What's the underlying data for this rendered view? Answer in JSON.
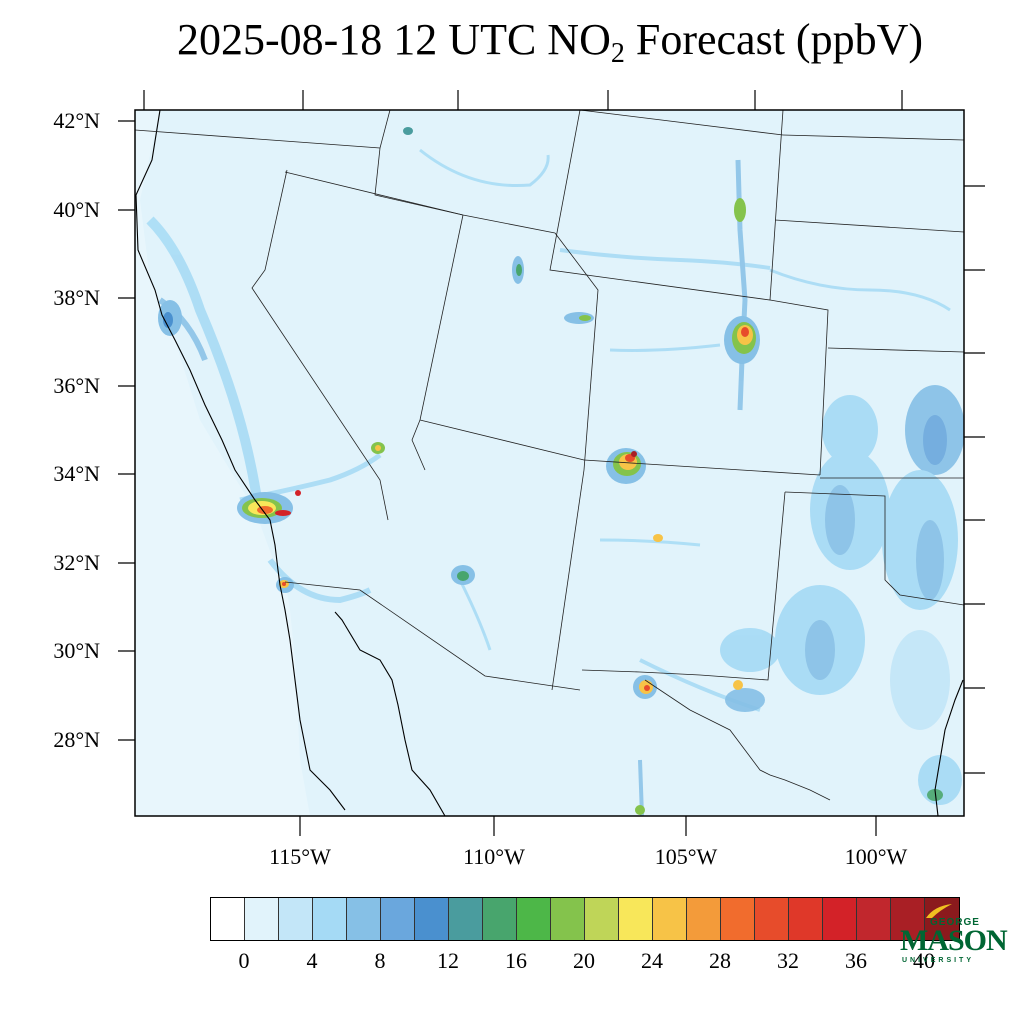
{
  "title": {
    "date_time": "2025-08-18 12 UTC NO",
    "subscript": "2",
    "suffix": " Forecast (ppbV)"
  },
  "lat_labels": [
    "42°N",
    "40°N",
    "38°N",
    "36°N",
    "34°N",
    "32°N",
    "30°N",
    "28°N"
  ],
  "lon_labels": [
    "115°W",
    "110°W",
    "105°W",
    "100°W"
  ],
  "colorbar": {
    "colors": [
      "#ffffff",
      "#e1f3fb",
      "#c3e6f8",
      "#a5daf5",
      "#86c0e6",
      "#6aa7dd",
      "#4a90cf",
      "#4a9c9e",
      "#48a56d",
      "#4db748",
      "#84c34c",
      "#bfd558",
      "#f8e75a",
      "#f7c347",
      "#f39b3a",
      "#f16c2d",
      "#e74c2b",
      "#df3829",
      "#d32228",
      "#c1272d",
      "#a91f25",
      "#8b1a1d"
    ],
    "ticks": [
      "0",
      "4",
      "8",
      "12",
      "16",
      "20",
      "24",
      "28",
      "32",
      "36",
      "40"
    ]
  },
  "logo": {
    "line1": "GEORGE",
    "line2": "MASON",
    "line3": "UNIVERSITY"
  },
  "map": {
    "background": "#e1f3fb",
    "hotspots": [
      {
        "name": "los-angeles",
        "level": 30
      },
      {
        "name": "phoenix",
        "level": 18
      },
      {
        "name": "salt-lake-city",
        "level": 14
      },
      {
        "name": "denver",
        "level": 30
      },
      {
        "name": "albuquerque",
        "level": 34
      },
      {
        "name": "el-paso",
        "level": 30
      },
      {
        "name": "san-francisco",
        "level": 14
      },
      {
        "name": "las-vegas",
        "level": 22
      }
    ]
  }
}
